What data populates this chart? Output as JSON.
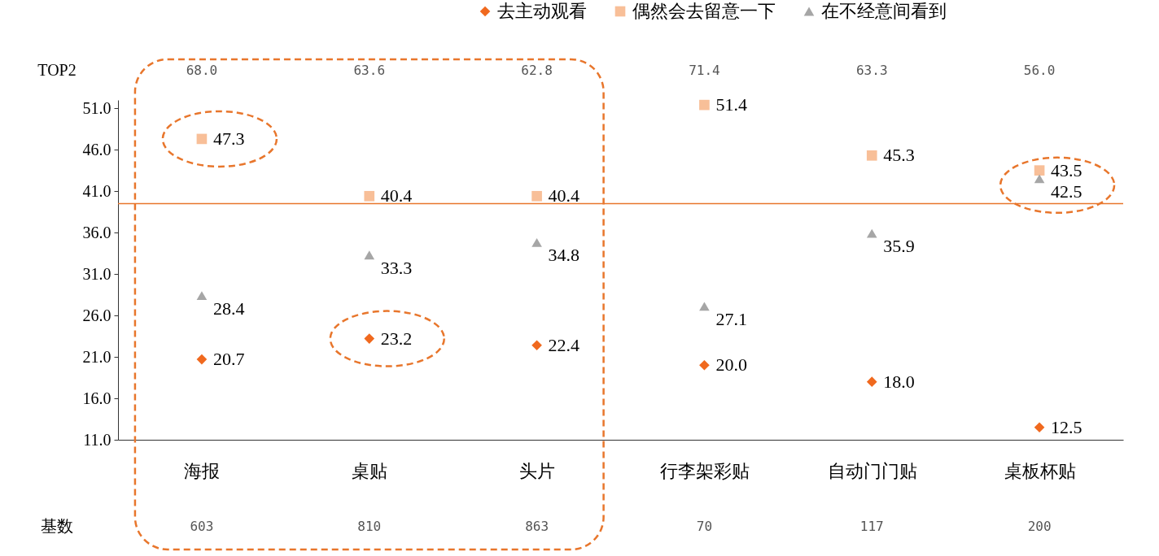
{
  "chart_data": {
    "type": "scatter",
    "categories": [
      "海报",
      "桌贴",
      "头片",
      "行李架彩贴",
      "自动门门贴",
      "桌板杯贴"
    ],
    "series": [
      {
        "name": "去主动观看",
        "color": "#f0691e",
        "marker": "diamond",
        "values": [
          20.7,
          23.2,
          22.4,
          20.0,
          18.0,
          12.5
        ],
        "value_labels": [
          "20.7",
          "23.2",
          "22.4",
          "20.0",
          "18.0",
          "12.5"
        ]
      },
      {
        "name": "偶然会去留意一下",
        "color": "#f8bf98",
        "marker": "square",
        "values": [
          47.3,
          40.4,
          40.4,
          51.4,
          45.3,
          43.5
        ],
        "value_labels": [
          "47.3",
          "40.4",
          "40.4",
          "51.4",
          "45.3",
          "43.5"
        ]
      },
      {
        "name": "在不经意间看到",
        "color": "#a6a6a6",
        "marker": "triangle",
        "values": [
          28.4,
          33.3,
          34.8,
          27.1,
          35.9,
          42.5
        ],
        "value_labels": [
          "28.4",
          "33.3",
          "34.8",
          "27.1",
          "35.9",
          "42.5"
        ]
      }
    ],
    "ylim": [
      11,
      52
    ],
    "yticks": [
      {
        "value": 11,
        "label": "11.0"
      },
      {
        "value": 16,
        "label": "16.0"
      },
      {
        "value": 21,
        "label": "21.0"
      },
      {
        "value": 26,
        "label": "26.0"
      },
      {
        "value": 31,
        "label": "31.0"
      },
      {
        "value": 36,
        "label": "36.0"
      },
      {
        "value": 41,
        "label": "41.0"
      },
      {
        "value": 46,
        "label": "46.0"
      },
      {
        "value": 51,
        "label": "51.0"
      }
    ],
    "ref_lines": [
      {
        "axis": "y",
        "value": 39.5,
        "color": "#e8762c"
      }
    ],
    "grid": false,
    "legend": "top right",
    "annotations": [
      "TOP2",
      "68.0",
      "63.6",
      "62.8",
      "71.4",
      "63.3",
      "56.0",
      "基数",
      "603",
      "810",
      "863",
      "70",
      "117",
      "200"
    ]
  }
}
